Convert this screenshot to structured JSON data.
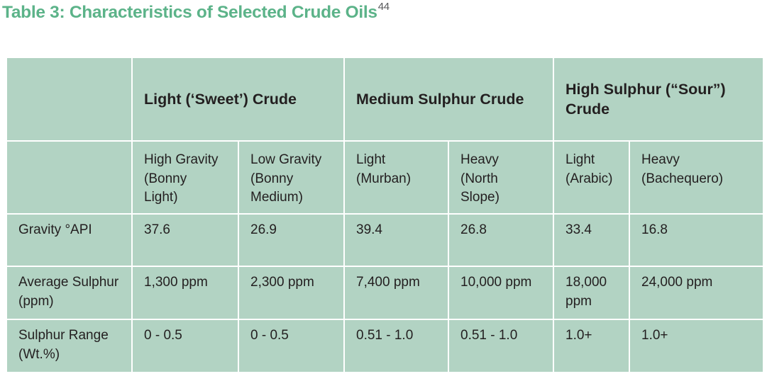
{
  "title": {
    "text": "Table 3: Characteristics of Selected Crude Oils",
    "footnote_marker": "44"
  },
  "colors": {
    "cell_bg": "#b2d3c3",
    "title_green": "#5cb389",
    "text_dark": "#231f20",
    "footnote_gray": "#58595b",
    "page_bg": "#ffffff"
  },
  "table": {
    "group_headers": [
      "Light (‘Sweet’) Crude",
      "Medium Sulphur Crude",
      "High Sulphur (“Sour”)\nCrude"
    ],
    "sub_headers": [
      "High Gravity\n(Bonny\nLight)",
      "Low Gravity\n(Bonny\nMedium)",
      "Light\n(Murban)",
      "Heavy\n(North\nSlope)",
      "Light\n(Arabic)",
      "Heavy\n(Bachequero)"
    ],
    "rows": [
      {
        "label": "Gravity °API",
        "values": [
          "37.6",
          "26.9",
          "39.4",
          "26.8",
          "33.4",
          "16.8"
        ]
      },
      {
        "label": "Average Sulphur\n(ppm)",
        "values": [
          "1,300 ppm",
          "2,300 ppm",
          "7,400 ppm",
          "10,000 ppm",
          "18,000\nppm",
          "24,000 ppm"
        ]
      },
      {
        "label": "Sulphur Range\n(Wt.%)",
        "values": [
          "0 - 0.5",
          "0 - 0.5",
          "0.51 - 1.0",
          "0.51 - 1.0",
          "1.0+",
          "1.0+"
        ]
      }
    ]
  }
}
